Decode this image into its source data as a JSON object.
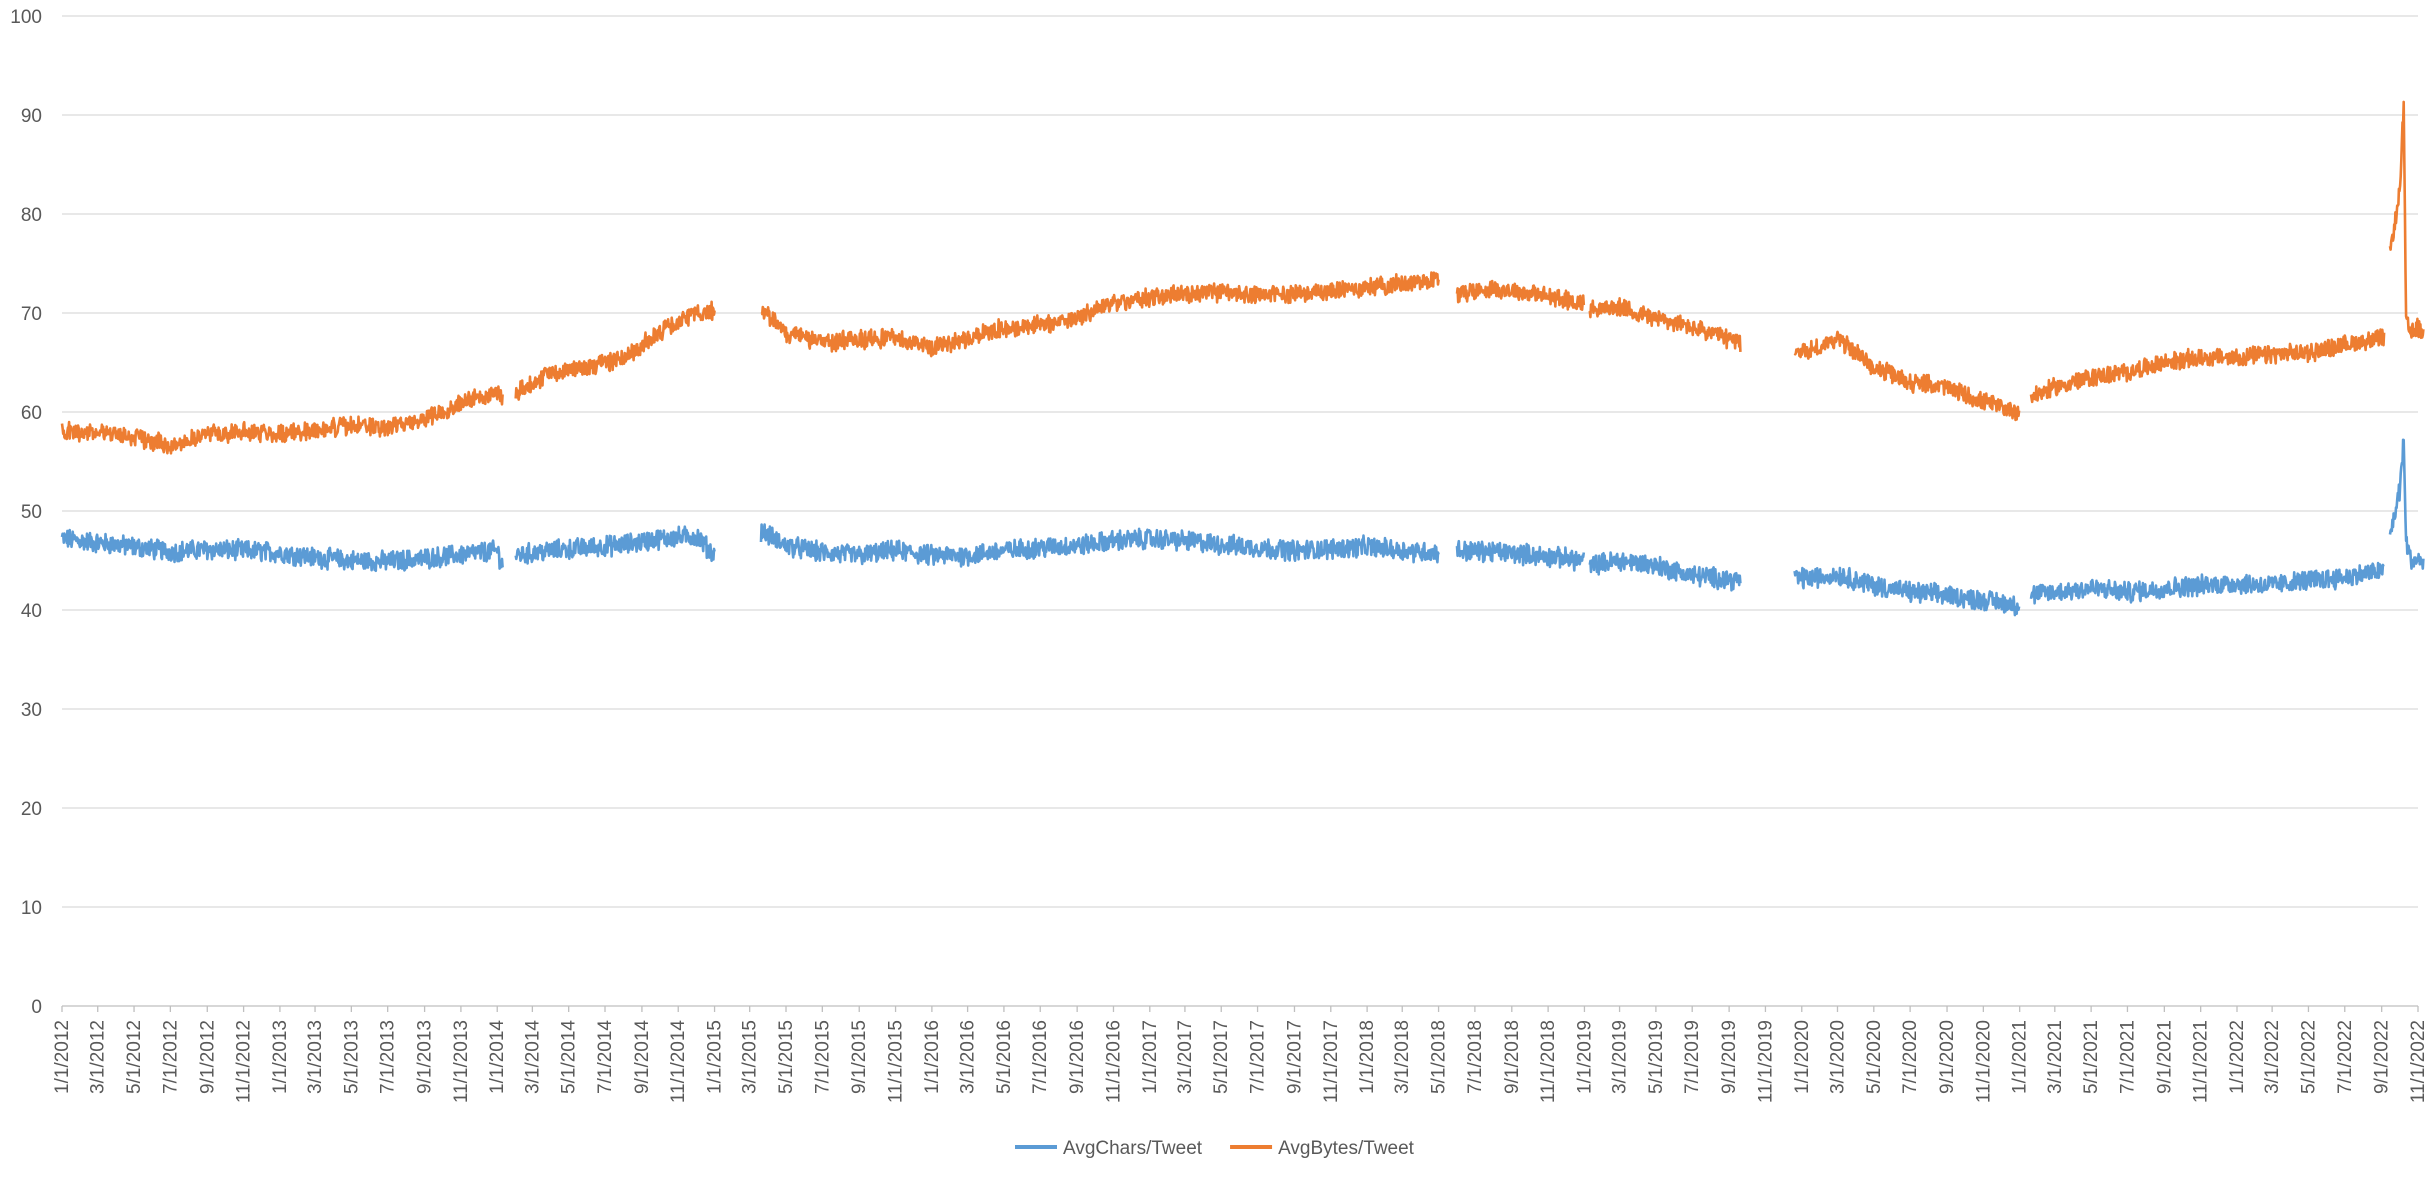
{
  "chart_data": {
    "type": "line",
    "title": "",
    "xlabel": "",
    "ylabel": "",
    "x_start": "1/1/2012",
    "x_end": "11/1/2022",
    "ylim": [
      0,
      100
    ],
    "yticks": [
      "0",
      "10",
      "20",
      "30",
      "40",
      "50",
      "60",
      "70",
      "80",
      "90",
      "100"
    ],
    "xticks": [
      "1/1/2012",
      "3/1/2012",
      "5/1/2012",
      "7/1/2012",
      "9/1/2012",
      "11/1/2012",
      "1/1/2013",
      "3/1/2013",
      "5/1/2013",
      "7/1/2013",
      "9/1/2013",
      "11/1/2013",
      "1/1/2014",
      "3/1/2014",
      "5/1/2014",
      "7/1/2014",
      "9/1/2014",
      "11/1/2014",
      "1/1/2015",
      "3/1/2015",
      "5/1/2015",
      "7/1/2015",
      "9/1/2015",
      "11/1/2015",
      "1/1/2016",
      "3/1/2016",
      "5/1/2016",
      "7/1/2016",
      "9/1/2016",
      "11/1/2016",
      "1/1/2017",
      "3/1/2017",
      "5/1/2017",
      "7/1/2017",
      "9/1/2017",
      "11/1/2017",
      "1/1/2018",
      "3/1/2018",
      "5/1/2018",
      "7/1/2018",
      "9/1/2018",
      "11/1/2018",
      "1/1/2019",
      "3/1/2019",
      "5/1/2019",
      "7/1/2019",
      "9/1/2019",
      "11/1/2019",
      "1/1/2020",
      "3/1/2020",
      "5/1/2020",
      "7/1/2020",
      "9/1/2020",
      "11/1/2020",
      "1/1/2021",
      "3/1/2021",
      "5/1/2021",
      "7/1/2021",
      "9/1/2021",
      "11/1/2021",
      "1/1/2022",
      "3/1/2022",
      "5/1/2022",
      "7/1/2022",
      "9/1/2022",
      "11/1/2022"
    ],
    "grid": true,
    "legend_position": "bottom",
    "series": [
      {
        "name": "AvgChars/Tweet",
        "color": "#5b9bd5",
        "segments": [
          {
            "start": "2012-01-01",
            "end": "2014-01-10",
            "points": [
              [
                "2012-01-01",
                47.2
              ],
              [
                "2012-03-01",
                46.8
              ],
              [
                "2012-05-01",
                46.4
              ],
              [
                "2012-07-01",
                45.9
              ],
              [
                "2012-09-01",
                46.1
              ],
              [
                "2012-11-01",
                46.0
              ],
              [
                "2013-01-01",
                45.8
              ],
              [
                "2013-03-01",
                45.3
              ],
              [
                "2013-05-01",
                45.0
              ],
              [
                "2013-07-01",
                44.9
              ],
              [
                "2013-09-01",
                45.2
              ],
              [
                "2013-11-01",
                45.6
              ],
              [
                "2014-01-01",
                46.0
              ],
              [
                "2014-01-10",
                44.5
              ]
            ]
          },
          {
            "start": "2014-02-01",
            "end": "2015-01-01",
            "points": [
              [
                "2014-02-01",
                45.5
              ],
              [
                "2014-04-01",
                46.0
              ],
              [
                "2014-06-01",
                46.3
              ],
              [
                "2014-08-01",
                46.6
              ],
              [
                "2014-10-01",
                47.2
              ],
              [
                "2014-12-01",
                47.5
              ],
              [
                "2015-01-01",
                45.5
              ]
            ]
          },
          {
            "start": "2015-03-20",
            "end": "2018-05-01",
            "points": [
              [
                "2015-03-20",
                48.0
              ],
              [
                "2015-05-01",
                46.5
              ],
              [
                "2015-07-01",
                45.8
              ],
              [
                "2015-09-01",
                45.5
              ],
              [
                "2015-11-01",
                46.0
              ],
              [
                "2016-01-01",
                45.5
              ],
              [
                "2016-03-01",
                45.5
              ],
              [
                "2016-05-01",
                46.0
              ],
              [
                "2016-07-01",
                46.3
              ],
              [
                "2016-09-01",
                46.5
              ],
              [
                "2016-11-01",
                47.0
              ],
              [
                "2017-01-01",
                47.2
              ],
              [
                "2017-03-01",
                47.0
              ],
              [
                "2017-05-01",
                46.6
              ],
              [
                "2017-07-01",
                46.3
              ],
              [
                "2017-09-01",
                46.0
              ],
              [
                "2017-11-01",
                46.2
              ],
              [
                "2018-01-01",
                46.4
              ],
              [
                "2018-03-01",
                46.0
              ],
              [
                "2018-05-01",
                45.8
              ]
            ]
          },
          {
            "start": "2018-06-01",
            "end": "2018-12-31",
            "points": [
              [
                "2018-06-01",
                46.0
              ],
              [
                "2018-08-01",
                45.9
              ],
              [
                "2018-10-01",
                45.6
              ],
              [
                "2018-12-31",
                45.0
              ]
            ]
          },
          {
            "start": "2019-01-10",
            "end": "2019-09-20",
            "points": [
              [
                "2019-01-10",
                44.5
              ],
              [
                "2019-03-01",
                45.0
              ],
              [
                "2019-05-01",
                44.5
              ],
              [
                "2019-07-01",
                43.5
              ],
              [
                "2019-09-20",
                43.0
              ]
            ]
          },
          {
            "start": "2019-12-20",
            "end": "2020-12-31",
            "points": [
              [
                "2019-12-20",
                43.2
              ],
              [
                "2020-02-01",
                43.3
              ],
              [
                "2020-03-01",
                43.6
              ],
              [
                "2020-05-01",
                42.5
              ],
              [
                "2020-07-01",
                41.8
              ],
              [
                "2020-09-01",
                41.5
              ],
              [
                "2020-11-01",
                41.0
              ],
              [
                "2020-12-31",
                40.5
              ]
            ]
          },
          {
            "start": "2021-01-20",
            "end": "2022-09-05",
            "points": [
              [
                "2021-01-20",
                41.5
              ],
              [
                "2021-03-01",
                41.8
              ],
              [
                "2021-05-01",
                42.2
              ],
              [
                "2021-07-01",
                41.8
              ],
              [
                "2021-09-01",
                42.2
              ],
              [
                "2021-11-01",
                42.5
              ],
              [
                "2022-01-01",
                42.7
              ],
              [
                "2022-03-01",
                42.5
              ],
              [
                "2022-05-01",
                43.0
              ],
              [
                "2022-07-01",
                43.3
              ],
              [
                "2022-09-05",
                44.0
              ]
            ]
          },
          {
            "start": "2022-09-15",
            "end": "2022-11-10",
            "points": [
              [
                "2022-09-15",
                47.5
              ],
              [
                "2022-10-01",
                52.0
              ],
              [
                "2022-10-08",
                57.0
              ],
              [
                "2022-10-12",
                47.0
              ],
              [
                "2022-10-20",
                45.0
              ],
              [
                "2022-11-01",
                45.0
              ],
              [
                "2022-11-10",
                44.8
              ]
            ]
          }
        ]
      },
      {
        "name": "AvgBytes/Tweet",
        "color": "#ed7d31",
        "segments": [
          {
            "start": "2012-01-01",
            "end": "2014-01-10",
            "points": [
              [
                "2012-01-01",
                58.0
              ],
              [
                "2012-03-01",
                58.0
              ],
              [
                "2012-05-01",
                57.5
              ],
              [
                "2012-07-01",
                56.6
              ],
              [
                "2012-09-01",
                57.8
              ],
              [
                "2012-11-01",
                58.0
              ],
              [
                "2013-01-01",
                57.8
              ],
              [
                "2013-03-01",
                58.2
              ],
              [
                "2013-05-01",
                58.6
              ],
              [
                "2013-07-01",
                58.4
              ],
              [
                "2013-09-01",
                59.3
              ],
              [
                "2013-11-01",
                61.0
              ],
              [
                "2014-01-01",
                62.0
              ],
              [
                "2014-01-10",
                61.5
              ]
            ]
          },
          {
            "start": "2014-02-01",
            "end": "2015-01-01",
            "points": [
              [
                "2014-02-01",
                62.0
              ],
              [
                "2014-04-01",
                64.0
              ],
              [
                "2014-06-01",
                64.5
              ],
              [
                "2014-08-01",
                65.5
              ],
              [
                "2014-10-01",
                68.0
              ],
              [
                "2014-12-01",
                70.0
              ],
              [
                "2015-01-01",
                70.2
              ]
            ]
          },
          {
            "start": "2015-03-20",
            "end": "2018-05-01",
            "points": [
              [
                "2015-03-20",
                70.5
              ],
              [
                "2015-05-01",
                68.0
              ],
              [
                "2015-07-01",
                67.0
              ],
              [
                "2015-09-01",
                67.3
              ],
              [
                "2015-11-01",
                67.5
              ],
              [
                "2016-01-01",
                66.5
              ],
              [
                "2016-03-01",
                67.5
              ],
              [
                "2016-05-01",
                68.5
              ],
              [
                "2016-07-01",
                68.8
              ],
              [
                "2016-09-01",
                69.5
              ],
              [
                "2016-11-01",
                71.0
              ],
              [
                "2017-01-01",
                71.5
              ],
              [
                "2017-03-01",
                72.0
              ],
              [
                "2017-05-01",
                72.0
              ],
              [
                "2017-07-01",
                71.8
              ],
              [
                "2017-09-01",
                72.0
              ],
              [
                "2017-11-01",
                72.2
              ],
              [
                "2018-01-01",
                72.6
              ],
              [
                "2018-03-01",
                73.0
              ],
              [
                "2018-05-01",
                73.5
              ]
            ]
          },
          {
            "start": "2018-06-01",
            "end": "2018-12-31",
            "points": [
              [
                "2018-06-01",
                72.0
              ],
              [
                "2018-08-01",
                72.5
              ],
              [
                "2018-10-01",
                72.0
              ],
              [
                "2018-12-31",
                71.0
              ]
            ]
          },
          {
            "start": "2019-01-10",
            "end": "2019-09-20",
            "points": [
              [
                "2019-01-10",
                70.5
              ],
              [
                "2019-03-01",
                70.5
              ],
              [
                "2019-05-01",
                69.5
              ],
              [
                "2019-07-01",
                68.5
              ],
              [
                "2019-09-20",
                67.0
              ]
            ]
          },
          {
            "start": "2019-12-20",
            "end": "2020-12-31",
            "points": [
              [
                "2019-12-20",
                66.0
              ],
              [
                "2020-02-01",
                66.5
              ],
              [
                "2020-03-01",
                67.5
              ],
              [
                "2020-05-01",
                64.5
              ],
              [
                "2020-07-01",
                63.0
              ],
              [
                "2020-09-01",
                62.5
              ],
              [
                "2020-11-01",
                61.0
              ],
              [
                "2020-12-31",
                60.0
              ]
            ]
          },
          {
            "start": "2021-01-20",
            "end": "2022-09-05",
            "points": [
              [
                "2021-01-20",
                61.5
              ],
              [
                "2021-03-01",
                62.5
              ],
              [
                "2021-05-01",
                63.5
              ],
              [
                "2021-07-01",
                64.0
              ],
              [
                "2021-09-01",
                65.0
              ],
              [
                "2021-11-01",
                65.5
              ],
              [
                "2022-01-01",
                65.5
              ],
              [
                "2022-03-01",
                65.8
              ],
              [
                "2022-05-01",
                66.0
              ],
              [
                "2022-07-01",
                66.8
              ],
              [
                "2022-09-05",
                67.5
              ]
            ]
          },
          {
            "start": "2022-09-15",
            "end": "2022-11-10",
            "points": [
              [
                "2022-09-15",
                76.0
              ],
              [
                "2022-10-01",
                82.0
              ],
              [
                "2022-10-08",
                91.0
              ],
              [
                "2022-10-12",
                69.0
              ],
              [
                "2022-10-20",
                68.0
              ],
              [
                "2022-11-01",
                68.5
              ],
              [
                "2022-11-10",
                68.0
              ]
            ]
          }
        ]
      }
    ]
  }
}
